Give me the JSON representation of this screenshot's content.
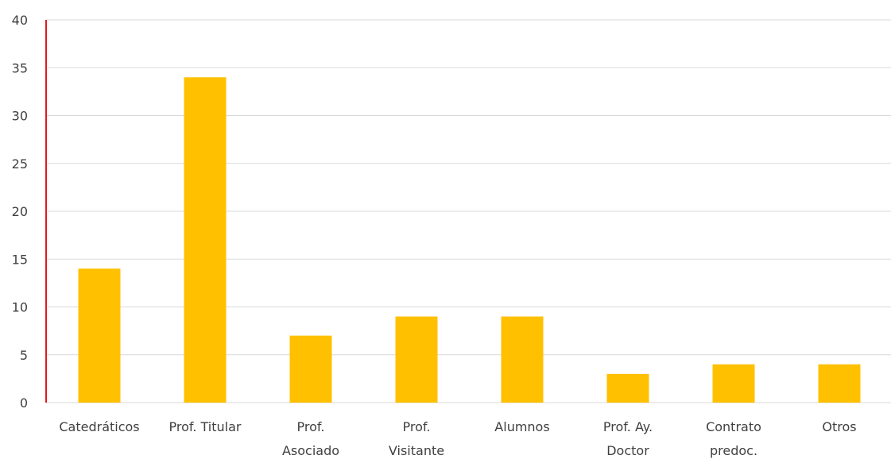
{
  "chart_data": {
    "type": "bar",
    "categories": [
      [
        "Catedráticos"
      ],
      [
        "Prof. Titular"
      ],
      [
        "Prof.",
        "Asociado"
      ],
      [
        "Prof.",
        "Visitante"
      ],
      [
        "Alumnos"
      ],
      [
        "Prof. Ay.",
        "Doctor"
      ],
      [
        "Contrato",
        "predoc."
      ],
      [
        "Otros"
      ]
    ],
    "values": [
      14,
      34,
      7,
      9,
      9,
      3,
      4,
      4
    ],
    "title": "",
    "xlabel": "",
    "ylabel": "",
    "ylim": [
      0,
      40
    ],
    "yticks": [
      "0",
      "5",
      "10",
      "15",
      "20",
      "25",
      "30",
      "35",
      "40"
    ],
    "grid": true,
    "legend": "none",
    "colors": {
      "bar": "#ffc000",
      "axis": "#e31a1c",
      "grid": "#d9d9d9",
      "text": "#404040"
    }
  }
}
